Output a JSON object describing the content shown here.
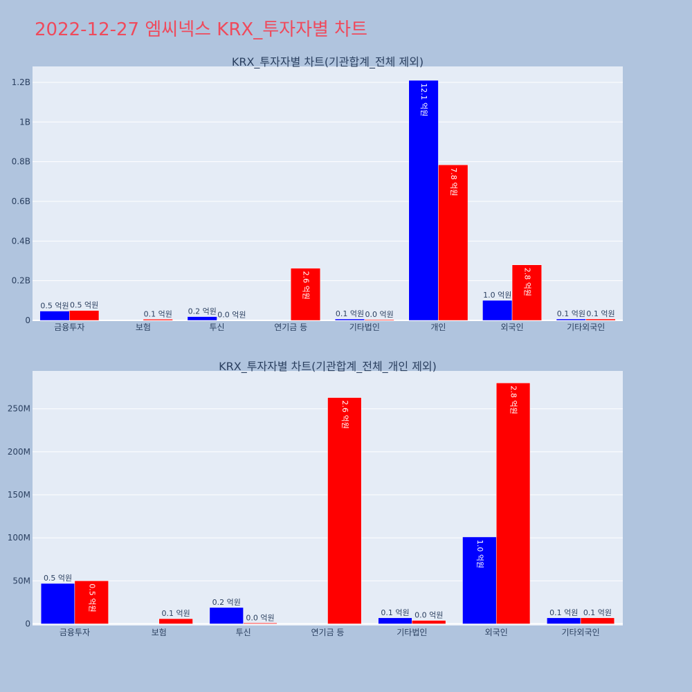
{
  "page_title": "2022-12-27 엠씨넥스 KRX_투자자별 차트",
  "colors": {
    "series1": "#0000ff",
    "series2": "#ff0000",
    "plot_bg": "#e5ecf6",
    "paper_bg": "#b0c4de",
    "title": "#ef4a5c"
  },
  "chart_data": [
    {
      "type": "bar",
      "title": "KRX_투자자별 차트(기관합계_전체 제외)",
      "categories": [
        "금융투자",
        "보험",
        "투신",
        "연기금 등",
        "기타법인",
        "개인",
        "외국인",
        "기타외국인"
      ],
      "series": [
        {
          "values": [
            47000000,
            0,
            19000000,
            0,
            7000000,
            1210000000,
            101000000,
            7000000
          ],
          "labels": [
            "0.5 억원",
            "",
            "0.2 억원",
            "",
            "0.1 억원",
            "12.1 억원",
            "1.0 억원",
            "0.1 억원"
          ]
        },
        {
          "values": [
            50000000,
            6000000,
            1000000,
            263000000,
            4000000,
            784000000,
            280000000,
            7000000
          ],
          "labels": [
            "0.5 억원",
            "0.1 억원",
            "0.0 억원",
            "2.6 억원",
            "0.0 억원",
            "7.8 억원",
            "2.8 억원",
            "0.1 억원"
          ]
        }
      ],
      "yticks": [
        0,
        200000000,
        400000000,
        600000000,
        800000000,
        1000000000,
        1200000000
      ],
      "ytick_labels": [
        "0",
        "0.2B",
        "0.4B",
        "0.6B",
        "0.8B",
        "1B",
        "1.2B"
      ],
      "ylim": [
        0,
        1280000000
      ],
      "grid": true
    },
    {
      "type": "bar",
      "title": "KRX_투자자별 차트(기관합계_전체_개인 제외)",
      "categories": [
        "금융투자",
        "보험",
        "투신",
        "연기금 등",
        "기타법인",
        "외국인",
        "기타외국인"
      ],
      "series": [
        {
          "values": [
            47000000,
            0,
            19000000,
            0,
            7000000,
            101000000,
            7000000
          ],
          "labels": [
            "0.5 억원",
            "",
            "0.2 억원",
            "",
            "0.1 억원",
            "1.0 억원",
            "0.1 억원"
          ]
        },
        {
          "values": [
            50000000,
            6000000,
            1000000,
            263000000,
            4000000,
            280000000,
            7000000
          ],
          "labels": [
            "0.5 억원",
            "0.1 억원",
            "0.0 억원",
            "2.6 억원",
            "0.0 억원",
            "2.8 억원",
            "0.1 억원"
          ]
        }
      ],
      "yticks": [
        0,
        50000000,
        100000000,
        150000000,
        200000000,
        250000000
      ],
      "ytick_labels": [
        "0",
        "50M",
        "100M",
        "150M",
        "200M",
        "250M"
      ],
      "ylim": [
        -2000000,
        294000000
      ],
      "grid": true
    }
  ]
}
